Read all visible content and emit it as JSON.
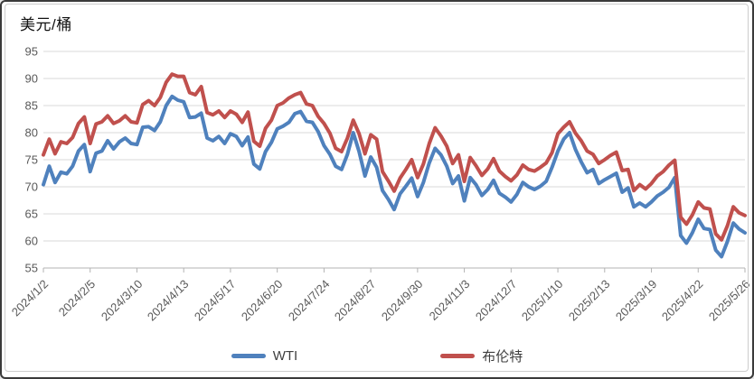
{
  "title": "美元/桶",
  "legend": {
    "items": [
      {
        "label": "WTI",
        "color": "#4F81BD"
      },
      {
        "label": "布伦特",
        "color": "#C0504D"
      }
    ]
  },
  "axis_style": {
    "grid_color": "#d9d9d9",
    "axis_color": "#b3b3b3",
    "tick_text_color": "#595959"
  },
  "chart_data": {
    "type": "line",
    "title": "美元/桶",
    "ylabel": "美元/桶",
    "ylim": [
      55,
      95
    ],
    "yticks": [
      95,
      90,
      85,
      80,
      75,
      70,
      65,
      60,
      55
    ],
    "grid": true,
    "legend_position": "bottom",
    "x_labels": [
      "2024/1/2",
      "2024/2/5",
      "2024/3/10",
      "2024/4/13",
      "2024/5/17",
      "2024/6/20",
      "2024/7/24",
      "2024/8/27",
      "2024/9/30",
      "2024/11/3",
      "2024/12/7",
      "2025/1/10",
      "2025/2/13",
      "2025/3/19",
      "2025/4/22",
      "2025/5/26"
    ],
    "x_note": "values are sampled every 3 trading days from 2024/1/2 to 2025/5/26; axis labels fall every 8 samples",
    "series": [
      {
        "name": "WTI",
        "color": "#4F81BD",
        "values": [
          70.4,
          73.8,
          70.8,
          72.7,
          72.4,
          73.8,
          76.6,
          77.8,
          72.8,
          76.2,
          76.6,
          78.5,
          77.0,
          78.3,
          79.0,
          78.0,
          77.8,
          81.0,
          81.1,
          80.4,
          82.0,
          85.0,
          86.7,
          86.0,
          85.7,
          82.8,
          82.9,
          83.6,
          79.0,
          78.5,
          79.3,
          78.0,
          79.8,
          79.3,
          77.6,
          79.2,
          74.2,
          73.3,
          76.5,
          78.2,
          80.7,
          81.2,
          81.9,
          83.5,
          83.9,
          82.1,
          81.9,
          80.2,
          77.6,
          76.0,
          73.8,
          73.2,
          76.0,
          80.0,
          76.5,
          72.0,
          75.5,
          73.6,
          69.3,
          67.7,
          65.8,
          68.7,
          70.1,
          71.6,
          68.2,
          70.8,
          74.4,
          77.1,
          75.9,
          73.8,
          70.6,
          72.0,
          67.4,
          71.7,
          70.4,
          68.4,
          69.5,
          71.2,
          68.8,
          68.1,
          67.2,
          68.6,
          70.8,
          70.0,
          69.5,
          70.1,
          71.0,
          73.6,
          76.6,
          78.8,
          80.0,
          76.9,
          74.6,
          72.6,
          73.2,
          70.6,
          71.3,
          71.9,
          72.5,
          69.0,
          69.8,
          66.3,
          67.0,
          66.3,
          67.2,
          68.3,
          69.0,
          69.9,
          71.7,
          61.0,
          59.6,
          61.5,
          64.0,
          62.3,
          62.1,
          58.3,
          57.1,
          59.9,
          63.3,
          62.2,
          61.5
        ]
      },
      {
        "name": "布伦特",
        "color": "#C0504D",
        "values": [
          75.9,
          78.8,
          76.1,
          78.3,
          78.0,
          79.1,
          81.7,
          82.9,
          78.0,
          81.6,
          82.0,
          83.1,
          81.7,
          82.2,
          83.1,
          82.0,
          81.8,
          85.2,
          85.9,
          85.0,
          86.5,
          89.3,
          90.8,
          90.4,
          90.4,
          87.4,
          87.0,
          88.5,
          83.7,
          83.3,
          84.0,
          82.8,
          84.0,
          83.4,
          81.9,
          83.8,
          78.4,
          77.5,
          80.8,
          82.3,
          85.0,
          85.5,
          86.4,
          87.0,
          87.4,
          85.3,
          85.0,
          83.0,
          81.7,
          79.9,
          77.1,
          76.5,
          79.0,
          82.3,
          79.8,
          76.1,
          79.6,
          78.8,
          72.8,
          71.1,
          69.2,
          71.6,
          73.2,
          75.0,
          71.7,
          74.2,
          78.0,
          80.9,
          79.4,
          77.5,
          74.3,
          75.9,
          71.0,
          75.4,
          73.9,
          72.1,
          73.3,
          75.2,
          72.9,
          71.9,
          71.1,
          72.2,
          74.0,
          73.2,
          72.9,
          73.6,
          74.4,
          76.3,
          79.8,
          81.0,
          82.0,
          79.9,
          78.5,
          76.6,
          76.0,
          74.3,
          75.0,
          75.8,
          76.4,
          73.0,
          73.2,
          69.3,
          70.4,
          69.6,
          70.6,
          72.0,
          72.8,
          74.0,
          74.9,
          64.4,
          63.1,
          64.8,
          67.2,
          66.1,
          65.9,
          61.3,
          60.2,
          62.8,
          66.3,
          65.2,
          64.7
        ]
      }
    ]
  }
}
